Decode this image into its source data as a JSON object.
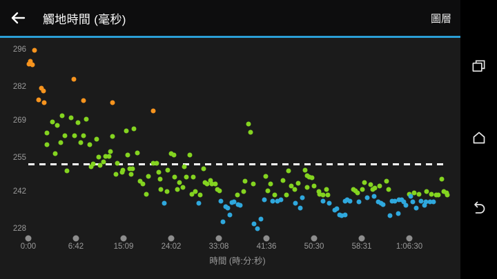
{
  "app_bar": {
    "title": "觸地時間 (毫秒)",
    "action": "圖層"
  },
  "nav_bar": {
    "recents": "recents",
    "home": "home",
    "back": "back"
  },
  "colors": {
    "accent": "#2b9fd6",
    "app_bar_bg": "#0d0d0e",
    "chart_bg": "#1b1b1b",
    "nav_bar_bg": "#000000",
    "axis_text": "#9a9a9a",
    "tick_dot": "#8d8d8d",
    "avg_line": "#ffffff",
    "series_high": "#f7941e",
    "series_mid": "#84d420",
    "series_low": "#2fa8dd"
  },
  "chart_data": {
    "type": "scatter",
    "title": "觸地時間 (毫秒)",
    "xlabel": "時間 (時:分:秒)",
    "ylabel": "",
    "grid": false,
    "legend": "none",
    "y_ticks": [
      296,
      282,
      269,
      255,
      242,
      228
    ],
    "ylim": [
      224.6,
      297.8
    ],
    "x_ticks": [
      {
        "label": "0:00",
        "sec": 0
      },
      {
        "label": "6:42",
        "sec": 402
      },
      {
        "label": "15:09",
        "sec": 909
      },
      {
        "label": "24:02",
        "sec": 1442
      },
      {
        "label": "33:08",
        "sec": 1988
      },
      {
        "label": "41:36",
        "sec": 2496
      },
      {
        "label": "50:30",
        "sec": 3030
      },
      {
        "label": "58:31",
        "sec": 3511
      },
      {
        "label": "1:06:30",
        "sec": 3990
      }
    ],
    "avg_line": {
      "value": 252.6,
      "style": "dashed",
      "color": "#ffffff"
    },
    "series": [
      {
        "name": "zone-high",
        "color": "#f7941e",
        "points": [
          [
            6,
            290.5
          ],
          [
            17,
            291.6
          ],
          [
            35,
            290.2
          ],
          [
            52,
            295.7
          ],
          [
            87,
            276.9
          ],
          [
            111,
            281.4
          ],
          [
            128,
            280.3
          ],
          [
            134,
            275.9
          ],
          [
            385,
            284.8
          ],
          [
            483,
            276.6
          ],
          [
            791,
            275.9
          ],
          [
            1241,
            272.7
          ]
        ]
      },
      {
        "name": "zone-mid",
        "color": "#84d420",
        "points": [
          [
            157,
            264.4
          ],
          [
            157,
            259.9
          ],
          [
            204,
            268.5
          ],
          [
            227,
            256.5
          ],
          [
            245,
            267.2
          ],
          [
            274,
            260.7
          ],
          [
            286,
            270.9
          ],
          [
            309,
            263.3
          ],
          [
            326,
            250.0
          ],
          [
            361,
            270.1
          ],
          [
            390,
            263.3
          ],
          [
            424,
            268.3
          ],
          [
            453,
            260.7
          ],
          [
            483,
            263.3
          ],
          [
            512,
            269.6
          ],
          [
            549,
            259.9
          ],
          [
            564,
            251.5
          ],
          [
            586,
            252.6
          ],
          [
            622,
            262.0
          ],
          [
            644,
            255.2
          ],
          [
            659,
            252.1
          ],
          [
            696,
            253.4
          ],
          [
            718,
            255.5
          ],
          [
            755,
            255.5
          ],
          [
            769,
            257.3
          ],
          [
            791,
            263.0
          ],
          [
            828,
            248.7
          ],
          [
            843,
            252.8
          ],
          [
            894,
            249.4
          ],
          [
            901,
            250.2
          ],
          [
            940,
            265.1
          ],
          [
            955,
            256.0
          ],
          [
            979,
            250.8
          ],
          [
            994,
            248.7
          ],
          [
            1009,
            250.8
          ],
          [
            1025,
            265.9
          ],
          [
            1064,
            256.8
          ],
          [
            1094,
            246.0
          ],
          [
            1125,
            245.0
          ],
          [
            1164,
            241.1
          ],
          [
            1187,
            247.9
          ],
          [
            1241,
            252.8
          ],
          [
            1280,
            252.8
          ],
          [
            1303,
            249.4
          ],
          [
            1319,
            246.8
          ],
          [
            1327,
            242.9
          ],
          [
            1396,
            242.1
          ],
          [
            1404,
            250.2
          ],
          [
            1442,
            256.5
          ],
          [
            1474,
            256.0
          ],
          [
            1482,
            247.6
          ],
          [
            1513,
            242.9
          ],
          [
            1537,
            245.5
          ],
          [
            1577,
            243.7
          ],
          [
            1592,
            251.5
          ],
          [
            1616,
            247.6
          ],
          [
            1656,
            256.0
          ],
          [
            1679,
            241.1
          ],
          [
            1695,
            247.6
          ],
          [
            1719,
            242.1
          ],
          [
            1774,
            240.8
          ],
          [
            1814,
            250.8
          ],
          [
            1830,
            245.5
          ],
          [
            1853,
            245.0
          ],
          [
            1893,
            246.3
          ],
          [
            1909,
            245.0
          ],
          [
            1948,
            245.0
          ],
          [
            1973,
            242.9
          ],
          [
            1995,
            242.4
          ],
          [
            2187,
            240.8
          ],
          [
            2253,
            242.1
          ],
          [
            2268,
            246.0
          ],
          [
            2305,
            267.8
          ],
          [
            2327,
            264.6
          ],
          [
            2356,
            245.0
          ],
          [
            2489,
            247.9
          ],
          [
            2511,
            242.4
          ],
          [
            2542,
            245.0
          ],
          [
            2589,
            240.8
          ],
          [
            2682,
            246.3
          ],
          [
            2720,
            240.8
          ],
          [
            2744,
            250.0
          ],
          [
            2775,
            244.2
          ],
          [
            2813,
            242.9
          ],
          [
            2852,
            245.2
          ],
          [
            2929,
            250.2
          ],
          [
            2953,
            248.1
          ],
          [
            2953,
            243.7
          ],
          [
            2976,
            247.6
          ],
          [
            3007,
            247.3
          ],
          [
            3030,
            244.2
          ],
          [
            3079,
            242.1
          ],
          [
            3086,
            241.1
          ],
          [
            3121,
            240.8
          ],
          [
            3155,
            242.9
          ],
          [
            3169,
            240.8
          ],
          [
            3427,
            242.9
          ],
          [
            3448,
            242.4
          ],
          [
            3469,
            241.6
          ],
          [
            3518,
            242.9
          ],
          [
            3539,
            245.5
          ],
          [
            3601,
            244.7
          ],
          [
            3622,
            242.9
          ],
          [
            3643,
            243.4
          ],
          [
            3691,
            244.2
          ],
          [
            3761,
            246.0
          ],
          [
            3782,
            242.9
          ],
          [
            3990,
            241.1
          ],
          [
            4039,
            241.6
          ],
          [
            4087,
            241.1
          ],
          [
            4164,
            242.1
          ],
          [
            4212,
            241.1
          ],
          [
            4261,
            240.8
          ],
          [
            4282,
            240.8
          ],
          [
            4316,
            246.8
          ],
          [
            4337,
            242.1
          ],
          [
            4365,
            241.6
          ],
          [
            4372,
            240.8
          ]
        ]
      },
      {
        "name": "zone-low",
        "color": "#2fa8dd",
        "points": [
          [
            1365,
            237.7
          ],
          [
            1758,
            237.7
          ],
          [
            2010,
            238.5
          ],
          [
            2032,
            230.6
          ],
          [
            2062,
            236.4
          ],
          [
            2084,
            235.8
          ],
          [
            2106,
            233.2
          ],
          [
            2128,
            237.9
          ],
          [
            2150,
            238.2
          ],
          [
            2194,
            237.1
          ],
          [
            2216,
            236.9
          ],
          [
            2364,
            229.8
          ],
          [
            2400,
            228.0
          ],
          [
            2437,
            231.7
          ],
          [
            2474,
            239.0
          ],
          [
            2566,
            238.5
          ],
          [
            2620,
            238.5
          ],
          [
            2658,
            239.0
          ],
          [
            2821,
            237.7
          ],
          [
            2875,
            235.8
          ],
          [
            2898,
            239.8
          ],
          [
            3121,
            238.5
          ],
          [
            3183,
            237.7
          ],
          [
            3239,
            235.1
          ],
          [
            3260,
            235.6
          ],
          [
            3288,
            233.2
          ],
          [
            3309,
            232.9
          ],
          [
            3344,
            238.5
          ],
          [
            3344,
            233.2
          ],
          [
            3365,
            239.0
          ],
          [
            3393,
            238.5
          ],
          [
            3483,
            238.2
          ],
          [
            3567,
            239.8
          ],
          [
            3636,
            240.3
          ],
          [
            3678,
            238.2
          ],
          [
            3705,
            237.7
          ],
          [
            3726,
            237.1
          ],
          [
            3796,
            233.0
          ],
          [
            3816,
            238.5
          ],
          [
            3844,
            238.5
          ],
          [
            3879,
            233.8
          ],
          [
            3886,
            239.0
          ],
          [
            3913,
            239.0
          ],
          [
            3934,
            238.2
          ],
          [
            3955,
            236.9
          ],
          [
            4003,
            240.3
          ],
          [
            4024,
            238.2
          ],
          [
            4059,
            235.8
          ],
          [
            4108,
            238.5
          ],
          [
            4143,
            236.9
          ],
          [
            4157,
            238.2
          ],
          [
            4198,
            238.2
          ],
          [
            4233,
            238.2
          ]
        ]
      }
    ]
  }
}
